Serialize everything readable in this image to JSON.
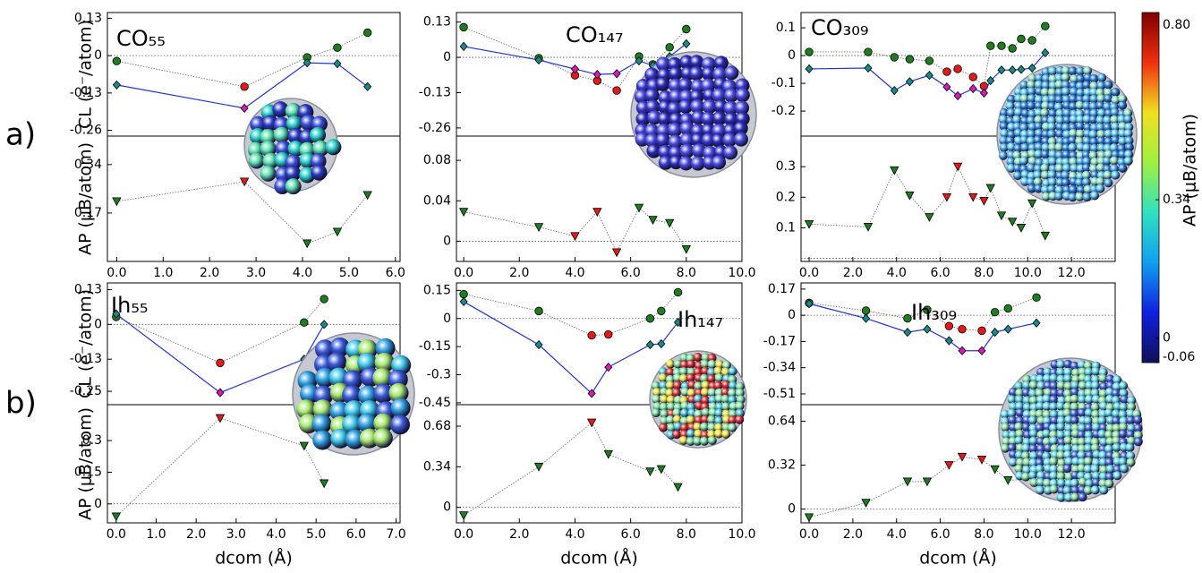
{
  "chart_data": [
    {
      "type": "line",
      "title": "CO₅₅",
      "x": [
        0,
        2.75,
        4.1,
        4.75,
        5.4
      ],
      "xlim": [
        -0.2,
        6.1
      ],
      "xticks": [
        {
          "value": 0,
          "label": "0.0"
        },
        {
          "value": 1,
          "label": "1.0"
        },
        {
          "value": 2,
          "label": "2.0"
        },
        {
          "value": 3,
          "label": "3.0"
        },
        {
          "value": 4,
          "label": "4.0"
        },
        {
          "value": 5,
          "label": "5.0"
        },
        {
          "value": 6,
          "label": "6.0"
        }
      ],
      "subplots": [
        {
          "ylabel": "CL (e⁻/atom)",
          "ylim": [
            -0.28,
            0.15
          ],
          "yticks": [
            0.13,
            0,
            -0.13,
            -0.26
          ],
          "series": [
            {
              "marker": "circle",
              "line": "dotted",
              "colors": [
                "#1e7d1e",
                "#e41a1a",
                "#1e7d1e",
                "#1e7d1e",
                "#1e7d1e"
              ],
              "values": [
                -0.019,
                -0.108,
                -0.006,
                0.028,
                0.08
              ]
            },
            {
              "marker": "diamond",
              "line": "solid",
              "line_color": "#2233dd",
              "colors": [
                "#178a8a",
                "#d81ab8",
                "#178a8a",
                "#178a8a",
                "#178a8a"
              ],
              "values": [
                -0.102,
                -0.183,
                -0.025,
                -0.028,
                -0.108
              ]
            }
          ]
        },
        {
          "ylabel": "AP (μB/atom)",
          "ylim": [
            0,
            0.44
          ],
          "yticks": [
            0.34,
            0.17
          ],
          "series": [
            {
              "marker": "triangle",
              "line": "dotted",
              "colors": [
                "#1e7d1e",
                "#e41a1a",
                "#1e7d1e",
                "#1e7d1e",
                "#1e7d1e"
              ],
              "values": [
                0.211,
                0.28,
                0.063,
                0.104,
                0.233
              ]
            }
          ]
        }
      ]
    },
    {
      "type": "line",
      "title": "CO₁₄₇",
      "x": [
        0,
        2.7,
        4.0,
        4.8,
        5.5,
        6.3,
        6.8,
        7.4,
        8.0
      ],
      "xlim": [
        -0.26,
        10
      ],
      "xticks": [
        {
          "value": 0,
          "label": "0.0"
        },
        {
          "value": 2,
          "label": "2.0"
        },
        {
          "value": 4,
          "label": "4.0"
        },
        {
          "value": 6,
          "label": "6.0"
        },
        {
          "value": 8,
          "label": "8.0"
        },
        {
          "value": 10,
          "label": "10.0"
        }
      ],
      "subplots": [
        {
          "ylim": [
            -0.29,
            0.165
          ],
          "yticks": [
            0.13,
            0,
            -0.13,
            -0.26
          ],
          "series": [
            {
              "marker": "circle",
              "line": "dotted",
              "colors": [
                "#1e7d1e",
                "#1e7d1e",
                "#e41a1a",
                "#e41a1a",
                "#e41a1a",
                "#1e7d1e",
                "#1e7d1e",
                "#1e7d1e",
                "#1e7d1e"
              ],
              "values": [
                0.111,
                -0.003,
                -0.066,
                -0.086,
                -0.122,
                0.003,
                -0.026,
                0.037,
                0.104
              ]
            },
            {
              "marker": "diamond",
              "line": "solid",
              "line_color": "#2233dd",
              "colors": [
                "#178a8a",
                "#178a8a",
                "#d81ab8",
                "#d81ab8",
                "#d81ab8",
                "#178a8a",
                "#178a8a",
                "#178a8a",
                "#178a8a"
              ],
              "values": [
                0.04,
                -0.01,
                -0.043,
                -0.063,
                -0.06,
                -0.013,
                -0.03,
                0.003,
                0.05
              ]
            }
          ]
        },
        {
          "ylim": [
            -0.02,
            0.104
          ],
          "yticks": [
            0.08,
            0.04,
            0
          ],
          "series": [
            {
              "marker": "triangle",
              "line": "dotted",
              "colors": [
                "#1e7d1e",
                "#1e7d1e",
                "#e41a1a",
                "#e41a1a",
                "#e41a1a",
                "#1e7d1e",
                "#1e7d1e",
                "#1e7d1e",
                "#1e7d1e"
              ],
              "values": [
                0.029,
                0.014,
                0.005,
                0.029,
                -0.011,
                0.033,
                0.021,
                0.018,
                -0.008
              ]
            }
          ]
        }
      ]
    },
    {
      "type": "line",
      "title": "CO₃₀₉",
      "x": [
        0,
        2.7,
        3.9,
        4.6,
        5.5,
        6.3,
        6.8,
        7.5,
        8.0,
        8.3,
        8.8,
        9.3,
        9.7,
        10.2,
        10.8
      ],
      "xlim": [
        -0.37,
        14
      ],
      "xticks": [
        {
          "value": 0,
          "label": "0.0"
        },
        {
          "value": 2,
          "label": "2.0"
        },
        {
          "value": 4,
          "label": "4.0"
        },
        {
          "value": 6,
          "label": "6.0"
        },
        {
          "value": 8,
          "label": "8.0"
        },
        {
          "value": 10,
          "label": "10.0"
        },
        {
          "value": 12,
          "label": "12.0"
        }
      ],
      "subplots": [
        {
          "ylim": [
            -0.29,
            0.155
          ],
          "yticks": [
            0.1,
            0,
            -0.1,
            -0.2
          ],
          "series": [
            {
              "marker": "circle",
              "line": "dotted",
              "colors": [
                "#1e7d1e",
                "#1e7d1e",
                "#1e7d1e",
                "#1e7d1e",
                "#1e7d1e",
                "#e41a1a",
                "#e41a1a",
                "#e41a1a",
                "#e41a1a",
                "#1e7d1e",
                "#1e7d1e",
                "#1e7d1e",
                "#1e7d1e",
                "#1e7d1e",
                "#1e7d1e"
              ],
              "values": [
                0.013,
                0.013,
                -0.006,
                -0.013,
                -0.019,
                -0.058,
                -0.048,
                -0.077,
                -0.11,
                0.035,
                0.035,
                0.026,
                0.06,
                0.055,
                0.106
              ]
            },
            {
              "marker": "diamond",
              "line": "solid",
              "line_color": "#2233dd",
              "colors": [
                "#178a8a",
                "#178a8a",
                "#178a8a",
                "#178a8a",
                "#178a8a",
                "#d81ab8",
                "#d81ab8",
                "#d81ab8",
                "#d81ab8",
                "#178a8a",
                "#178a8a",
                "#178a8a",
                "#178a8a",
                "#178a8a",
                "#178a8a"
              ],
              "values": [
                -0.048,
                -0.045,
                -0.126,
                -0.094,
                -0.071,
                -0.113,
                -0.145,
                -0.119,
                -0.135,
                -0.09,
                -0.052,
                -0.052,
                -0.05,
                -0.045,
                0.01
              ]
            }
          ]
        },
        {
          "ylim": [
            -0.01,
            0.4
          ],
          "yticks": [
            0.3,
            0.2,
            0.1
          ],
          "series": [
            {
              "marker": "triangle",
              "line": "dotted",
              "colors": [
                "#1e7d1e",
                "#1e7d1e",
                "#1e7d1e",
                "#1e7d1e",
                "#1e7d1e",
                "#e41a1a",
                "#e41a1a",
                "#e41a1a",
                "#e41a1a",
                "#1e7d1e",
                "#1e7d1e",
                "#1e7d1e",
                "#1e7d1e",
                "#1e7d1e",
                "#1e7d1e"
              ],
              "values": [
                0.112,
                0.103,
                0.288,
                0.206,
                0.135,
                0.2,
                0.3,
                0.2,
                0.188,
                0.23,
                0.14,
                0.12,
                0.1,
                0.18,
                0.074
              ]
            }
          ]
        }
      ]
    },
    {
      "type": "line",
      "title": "Ih₅₅",
      "xlabel": "dcom (Å)",
      "x": [
        0,
        2.6,
        4.7,
        5.2
      ],
      "xlim": [
        -0.22,
        7.1
      ],
      "xticks": [
        {
          "value": 0,
          "label": "0.0"
        },
        {
          "value": 1,
          "label": "1.0"
        },
        {
          "value": 2,
          "label": "2.0"
        },
        {
          "value": 3,
          "label": "3.0"
        },
        {
          "value": 4,
          "label": "4.0"
        },
        {
          "value": 5,
          "label": "5.0"
        },
        {
          "value": 6,
          "label": "6.0"
        },
        {
          "value": 7,
          "label": "7.0"
        }
      ],
      "subplots": [
        {
          "ylabel": "CL (e⁻/atom)",
          "ylim": [
            -0.3,
            0.155
          ],
          "yticks": [
            0.13,
            0,
            -0.13,
            -0.25
          ],
          "series": [
            {
              "marker": "circle",
              "line": "dotted",
              "colors": [
                "#1e7d1e",
                "#e41a1a",
                "#1e7d1e",
                "#1e7d1e"
              ],
              "values": [
                0.028,
                -0.144,
                0.007,
                0.095
              ]
            },
            {
              "marker": "diamond",
              "line": "solid",
              "line_color": "#2233dd",
              "colors": [
                "#178a8a",
                "#d81ab8",
                "#178a8a",
                "#178a8a"
              ],
              "values": [
                0.039,
                -0.255,
                -0.13,
                0
              ]
            }
          ]
        },
        {
          "ylabel": "AP (μB/atom)",
          "ylim": [
            -0.09,
            0.47
          ],
          "yticks": [
            0.3,
            0.15,
            0
          ],
          "series": [
            {
              "marker": "triangle",
              "line": "dotted",
              "colors": [
                "#1e7d1e",
                "#e41a1a",
                "#1e7d1e",
                "#1e7d1e"
              ],
              "values": [
                -0.06,
                0.406,
                0.275,
                0.097
              ]
            }
          ]
        }
      ]
    },
    {
      "type": "line",
      "title": "Ih₁₄₇",
      "xlabel": "dcom (Å)",
      "x": [
        0,
        2.7,
        4.6,
        5.2,
        6.7,
        7.1,
        7.7
      ],
      "xlim": [
        -0.26,
        10
      ],
      "xticks": [
        {
          "value": 0,
          "label": "0.0"
        },
        {
          "value": 2,
          "label": "2.0"
        },
        {
          "value": 4,
          "label": "4.0"
        },
        {
          "value": 6,
          "label": "6.0"
        },
        {
          "value": 8,
          "label": "8.0"
        },
        {
          "value": 10,
          "label": "10.0"
        }
      ],
      "subplots": [
        {
          "ylim": [
            -0.46,
            0.19
          ],
          "yticks": [
            0.15,
            0,
            -0.15,
            -0.3,
            -0.45
          ],
          "series": [
            {
              "marker": "circle",
              "line": "dotted",
              "colors": [
                "#1e7d1e",
                "#1e7d1e",
                "#e41a1a",
                "#e41a1a",
                "#1e7d1e",
                "#1e7d1e",
                "#1e7d1e"
              ],
              "values": [
                0.13,
                0.04,
                -0.09,
                -0.085,
                0,
                0.04,
                0.14
              ]
            },
            {
              "marker": "diamond",
              "line": "solid",
              "line_color": "#2233dd",
              "colors": [
                "#178a8a",
                "#178a8a",
                "#d81ab8",
                "#d81ab8",
                "#178a8a",
                "#178a8a",
                "#178a8a"
              ],
              "values": [
                0.09,
                -0.14,
                -0.4,
                -0.26,
                -0.14,
                -0.135,
                -0.02
              ]
            }
          ]
        },
        {
          "ylim": [
            -0.13,
            0.86
          ],
          "yticks": [
            0.68,
            0.34,
            0
          ],
          "series": [
            {
              "marker": "triangle",
              "line": "dotted",
              "colors": [
                "#1e7d1e",
                "#1e7d1e",
                "#e41a1a",
                "#1e7d1e",
                "#1e7d1e",
                "#1e7d1e",
                "#1e7d1e"
              ],
              "values": [
                -0.067,
                0.34,
                0.71,
                0.445,
                0.3,
                0.32,
                0.17
              ]
            }
          ]
        }
      ]
    },
    {
      "type": "line",
      "title": "Ih₃₀₉",
      "xlabel": "dcom (Å)",
      "x": [
        0,
        2.6,
        4.5,
        5.4,
        6.4,
        7.0,
        7.9,
        8.5,
        9.1,
        10.4
      ],
      "xlim": [
        -0.37,
        14
      ],
      "xticks": [
        {
          "value": 0,
          "label": "0.0"
        },
        {
          "value": 2,
          "label": "2.0"
        },
        {
          "value": 4,
          "label": "4.0"
        },
        {
          "value": 6,
          "label": "6.0"
        },
        {
          "value": 8,
          "label": "8.0"
        },
        {
          "value": 10,
          "label": "10.0"
        },
        {
          "value": 12,
          "label": "12.0"
        }
      ],
      "subplots": [
        {
          "ylim": [
            -0.58,
            0.21
          ],
          "yticks": [
            0.17,
            0,
            -0.17,
            -0.34,
            -0.51
          ],
          "series": [
            {
              "marker": "circle",
              "line": "dotted",
              "colors": [
                "#1e7d1e",
                "#1e7d1e",
                "#1e7d1e",
                "#1e7d1e",
                "#e41a1a",
                "#e41a1a",
                "#e41a1a",
                "#1e7d1e",
                "#1e7d1e",
                "#1e7d1e"
              ],
              "values": [
                0.08,
                0.03,
                -0.02,
                0.035,
                -0.07,
                -0.09,
                -0.1,
                0.02,
                0.045,
                0.115
              ]
            },
            {
              "marker": "diamond",
              "line": "solid",
              "line_color": "#2233dd",
              "colors": [
                "#178a8a",
                "#178a8a",
                "#178a8a",
                "#178a8a",
                "#178a8a",
                "#d81ab8",
                "#d81ab8",
                "#178a8a",
                "#178a8a",
                "#178a8a"
              ],
              "values": [
                0.075,
                -0.02,
                -0.11,
                -0.09,
                -0.165,
                -0.23,
                -0.23,
                -0.11,
                -0.09,
                -0.05
              ]
            }
          ]
        },
        {
          "ylim": [
            -0.1,
            0.76
          ],
          "yticks": [
            0.64,
            0.32,
            0
          ],
          "series": [
            {
              "marker": "triangle",
              "line": "dotted",
              "colors": [
                "#1e7d1e",
                "#1e7d1e",
                "#1e7d1e",
                "#1e7d1e",
                "#e41a1a",
                "#e41a1a",
                "#e41a1a",
                "#1e7d1e",
                "#1e7d1e",
                "#1e7d1e"
              ],
              "values": [
                -0.06,
                0.046,
                0.2,
                0.2,
                0.32,
                0.38,
                0.36,
                0.29,
                0.21,
                0.22
              ]
            }
          ]
        }
      ]
    }
  ],
  "row_labels": [
    "a)",
    "b)"
  ],
  "colorbar": {
    "label": "AP (μB/atom)",
    "lim": [
      -0.06,
      0.8
    ],
    "ticks": [
      {
        "value": 0.8,
        "label": "0.80"
      },
      0.34,
      0,
      -0.06
    ],
    "colors": [
      "#10105a",
      "#1020e0",
      "#10a0f0",
      "#30e0c0",
      "#a0f040",
      "#f0e020",
      "#f03010",
      "#800000"
    ]
  }
}
